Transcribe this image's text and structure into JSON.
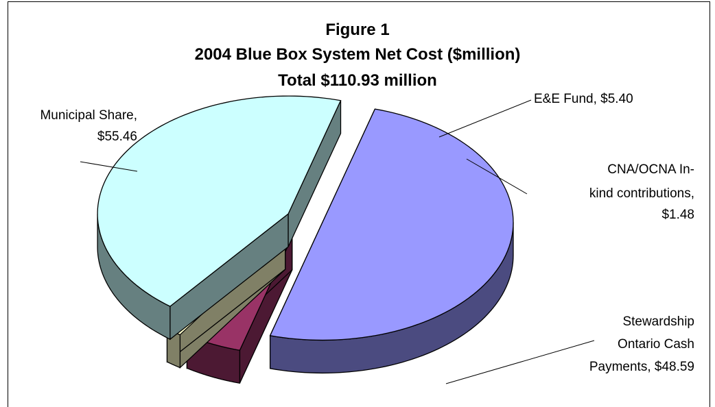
{
  "chart_data": {
    "type": "pie",
    "subtype": "3d-exploded",
    "title": "Figure 1",
    "subtitle": "2004 Blue Box System Net Cost ($million)",
    "total_label": "Total $110.93 million",
    "unit": "$million",
    "slices": [
      {
        "category": "Municipal Share",
        "value": 55.46,
        "label_lines": [
          "Municipal Share,",
          "$55.46"
        ],
        "top_color": "#9999FF",
        "side_color": "#4B4B80"
      },
      {
        "category": "E&E Fund",
        "value": 5.4,
        "label_lines": [
          "E&E Fund, $5.40"
        ],
        "top_color": "#993366",
        "side_color": "#4C1933"
      },
      {
        "category": "CNA/OCNA In-kind contributions",
        "value": 1.48,
        "label_lines": [
          "CNA/OCNA In-",
          "kind contributions,",
          "$1.48"
        ],
        "top_color": "#FFFFCC",
        "side_color": "#808066"
      },
      {
        "category": "Stewardship Ontario Cash Payments",
        "value": 48.59,
        "label_lines": [
          "Stewardship",
          "Ontario Cash",
          "Payments, $48.59"
        ],
        "top_color": "#CCFFFF",
        "side_color": "#668080"
      }
    ],
    "legend": "none",
    "grid": false
  }
}
